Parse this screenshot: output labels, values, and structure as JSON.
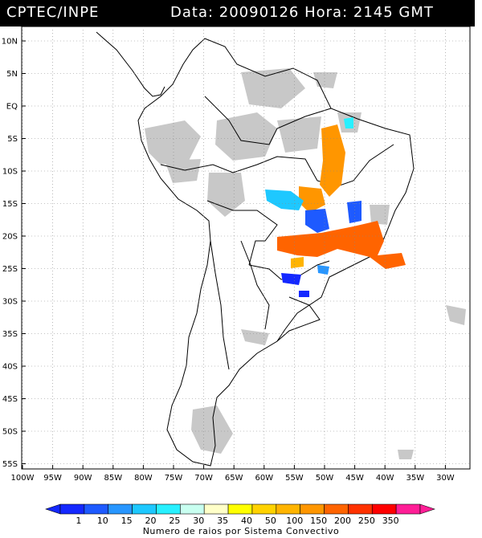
{
  "header": {
    "title": "CPTEC/INPE",
    "datetime": "Data: 20090126 Hora: 2145 GMT"
  },
  "map": {
    "lat_labels": [
      "10N",
      "5N",
      "EQ",
      "5S",
      "10S",
      "15S",
      "20S",
      "25S",
      "30S",
      "35S",
      "40S",
      "45S",
      "50S",
      "55S"
    ],
    "lon_labels": [
      "100W",
      "95W",
      "90W",
      "85W",
      "80W",
      "75W",
      "70W",
      "65W",
      "60W",
      "55W",
      "50W",
      "45W",
      "40W",
      "35W",
      "30W"
    ],
    "cloud_color": "#c8c8c8",
    "border_color": "#000000"
  },
  "legend": {
    "title": "Numero de raios por Sistema Convectivo",
    "values": [
      "1",
      "10",
      "15",
      "20",
      "25",
      "30",
      "35",
      "40",
      "50",
      "100",
      "150",
      "200",
      "250",
      "350"
    ],
    "colors": [
      "#1428ff",
      "#1e5aff",
      "#2896ff",
      "#1ec8ff",
      "#28f0ff",
      "#c8fff0",
      "#ffffc8",
      "#ffff00",
      "#ffd200",
      "#ffb400",
      "#ff9600",
      "#ff6400",
      "#ff3200",
      "#ff0000",
      "#ff1e96"
    ]
  }
}
